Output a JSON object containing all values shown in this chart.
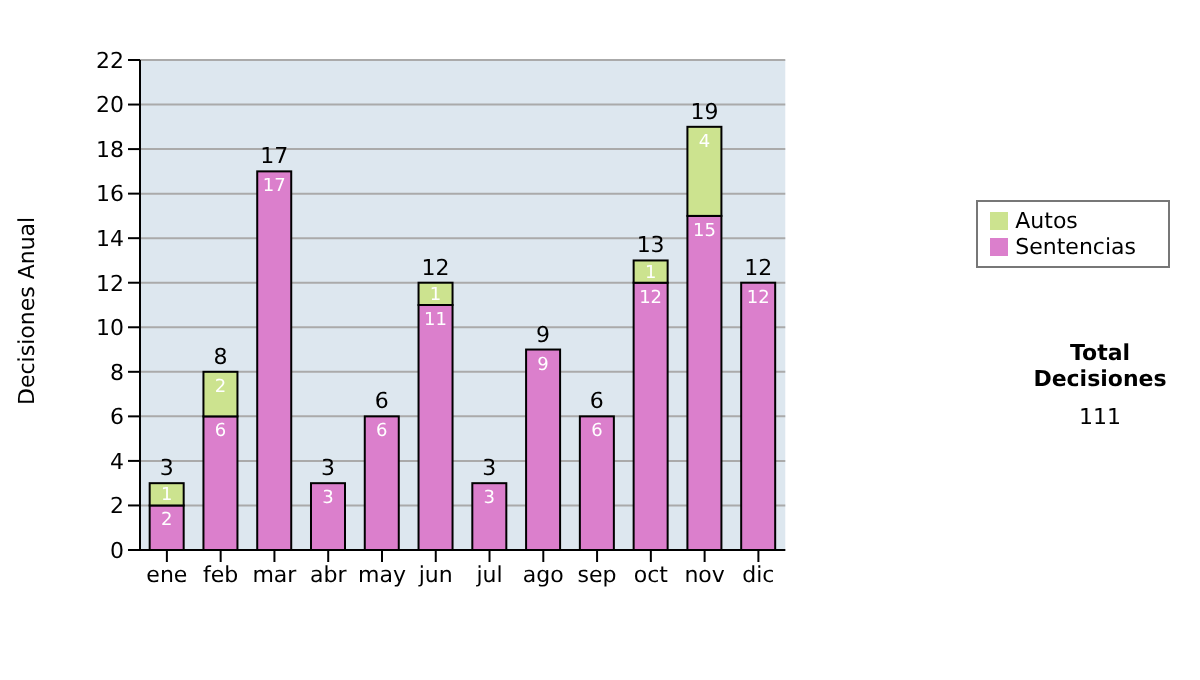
{
  "chart_data": {
    "type": "bar",
    "stacked": true,
    "ylabel": "Decisiones Anual",
    "categories": [
      "ene",
      "feb",
      "mar",
      "abr",
      "may",
      "jun",
      "jul",
      "ago",
      "sep",
      "oct",
      "nov",
      "dic"
    ],
    "series": [
      {
        "name": "Sentencias",
        "color": "#db7fcc",
        "values": [
          2,
          6,
          17,
          3,
          6,
          11,
          3,
          9,
          6,
          12,
          15,
          12
        ],
        "value_labels": [
          "2",
          "6",
          "17",
          "3",
          "6",
          "11",
          "3",
          "9",
          "6",
          "12",
          "15",
          "12"
        ]
      },
      {
        "name": "Autos",
        "color": "#cce38f",
        "values": [
          1,
          2,
          0,
          0,
          0,
          1,
          0,
          0,
          0,
          1,
          4,
          0
        ],
        "value_labels": [
          "1",
          "2",
          null,
          null,
          null,
          "1",
          null,
          null,
          null,
          "1",
          "4",
          null
        ]
      }
    ],
    "totals": [
      "3",
      "8",
      "17",
      "3",
      "6",
      "12",
      "3",
      "9",
      "6",
      "13",
      "19",
      "12"
    ],
    "ylim": [
      0,
      22
    ],
    "yticks": [
      0,
      2,
      4,
      6,
      8,
      10,
      12,
      14,
      16,
      18,
      20,
      22
    ],
    "grid": "y",
    "legend": "right",
    "annotations": [
      "Total Decisiones",
      "111"
    ]
  }
}
